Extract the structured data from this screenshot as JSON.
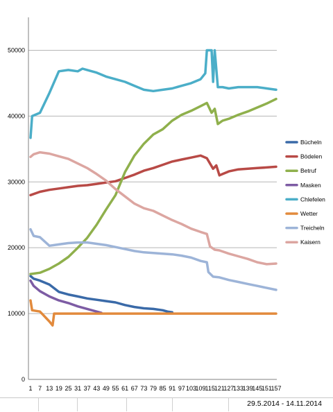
{
  "chart_data": {
    "type": "line",
    "x_ticks": [
      1,
      7,
      13,
      19,
      25,
      31,
      37,
      43,
      49,
      55,
      61,
      67,
      73,
      79,
      85,
      91,
      97,
      103,
      109,
      115,
      121,
      127,
      133,
      139,
      145,
      151,
      157
    ],
    "x_tick_labels": [
      "1",
      "7",
      "13",
      "19",
      "25",
      "31",
      "37",
      "43",
      "49",
      "55",
      "61",
      "67",
      "73",
      "79",
      "85",
      "91",
      "97",
      "103",
      "109",
      "115",
      "121",
      "127",
      "133",
      "139",
      "145",
      "151",
      "157"
    ],
    "y_ticks": [
      0,
      10000,
      20000,
      30000,
      40000,
      50000
    ],
    "y_tick_labels": [
      "0",
      "10000",
      "20000",
      "30000",
      "40000",
      "50000"
    ],
    "ylim": [
      0,
      55000
    ],
    "xlim": [
      1,
      157
    ],
    "grid": "horizontal",
    "legend_position": "right",
    "series": [
      {
        "name": "Bücheln",
        "color": "#3a6aa8",
        "points": [
          [
            1,
            15700
          ],
          [
            3,
            15300
          ],
          [
            7,
            15000
          ],
          [
            13,
            14400
          ],
          [
            19,
            13300
          ],
          [
            25,
            12900
          ],
          [
            31,
            12600
          ],
          [
            37,
            12300
          ],
          [
            43,
            12100
          ],
          [
            49,
            11900
          ],
          [
            55,
            11700
          ],
          [
            61,
            11300
          ],
          [
            67,
            11000
          ],
          [
            73,
            10800
          ],
          [
            79,
            10700
          ],
          [
            85,
            10500
          ],
          [
            88,
            10300
          ],
          [
            91,
            10200
          ]
        ]
      },
      {
        "name": "Bödelen",
        "color": "#b84a46",
        "points": [
          [
            1,
            28000
          ],
          [
            7,
            28500
          ],
          [
            13,
            28800
          ],
          [
            19,
            29000
          ],
          [
            25,
            29200
          ],
          [
            31,
            29400
          ],
          [
            37,
            29500
          ],
          [
            43,
            29700
          ],
          [
            49,
            29900
          ],
          [
            55,
            30100
          ],
          [
            61,
            30600
          ],
          [
            67,
            31100
          ],
          [
            73,
            31700
          ],
          [
            79,
            32100
          ],
          [
            85,
            32600
          ],
          [
            91,
            33100
          ],
          [
            97,
            33400
          ],
          [
            103,
            33700
          ],
          [
            109,
            34000
          ],
          [
            113,
            33600
          ],
          [
            117,
            32000
          ],
          [
            119,
            32500
          ],
          [
            121,
            31000
          ],
          [
            123,
            31200
          ],
          [
            127,
            31600
          ],
          [
            133,
            31900
          ],
          [
            139,
            32000
          ],
          [
            145,
            32100
          ],
          [
            151,
            32200
          ],
          [
            157,
            32300
          ]
        ]
      },
      {
        "name": "Betruf",
        "color": "#8fb04c",
        "points": [
          [
            1,
            16000
          ],
          [
            7,
            16200
          ],
          [
            13,
            16800
          ],
          [
            19,
            17600
          ],
          [
            25,
            18600
          ],
          [
            31,
            20000
          ],
          [
            37,
            21500
          ],
          [
            43,
            23500
          ],
          [
            49,
            25800
          ],
          [
            55,
            28000
          ],
          [
            61,
            31500
          ],
          [
            67,
            34000
          ],
          [
            73,
            35800
          ],
          [
            79,
            37200
          ],
          [
            85,
            38000
          ],
          [
            91,
            39300
          ],
          [
            97,
            40200
          ],
          [
            103,
            40800
          ],
          [
            109,
            41500
          ],
          [
            113,
            42000
          ],
          [
            116,
            40500
          ],
          [
            118,
            41100
          ],
          [
            120,
            38800
          ],
          [
            123,
            39300
          ],
          [
            127,
            39600
          ],
          [
            133,
            40200
          ],
          [
            139,
            40700
          ],
          [
            145,
            41300
          ],
          [
            151,
            41900
          ],
          [
            157,
            42600
          ]
        ]
      },
      {
        "name": "Masken",
        "color": "#7d5ca4",
        "points": [
          [
            1,
            15000
          ],
          [
            3,
            14200
          ],
          [
            7,
            13400
          ],
          [
            13,
            12600
          ],
          [
            19,
            12000
          ],
          [
            25,
            11600
          ],
          [
            31,
            11100
          ],
          [
            37,
            10700
          ],
          [
            43,
            10300
          ],
          [
            46,
            10100
          ]
        ]
      },
      {
        "name": "Chlefelen",
        "color": "#4baec8",
        "points": [
          [
            1,
            36700
          ],
          [
            2,
            40000
          ],
          [
            7,
            40500
          ],
          [
            13,
            43500
          ],
          [
            19,
            46800
          ],
          [
            25,
            47000
          ],
          [
            31,
            46800
          ],
          [
            34,
            47200
          ],
          [
            37,
            47000
          ],
          [
            43,
            46600
          ],
          [
            49,
            46000
          ],
          [
            55,
            45600
          ],
          [
            61,
            45200
          ],
          [
            67,
            44600
          ],
          [
            73,
            44000
          ],
          [
            79,
            43800
          ],
          [
            85,
            44000
          ],
          [
            91,
            44200
          ],
          [
            97,
            44600
          ],
          [
            103,
            45000
          ],
          [
            109,
            45600
          ],
          [
            112,
            46500
          ],
          [
            113,
            50000
          ],
          [
            116,
            50000
          ],
          [
            117,
            45200
          ],
          [
            118,
            50000
          ],
          [
            120,
            44400
          ],
          [
            123,
            44400
          ],
          [
            127,
            44200
          ],
          [
            133,
            44400
          ],
          [
            139,
            44400
          ],
          [
            145,
            44400
          ],
          [
            151,
            44200
          ],
          [
            157,
            44000
          ]
        ]
      },
      {
        "name": "Wetter",
        "color": "#e28a3c",
        "points": [
          [
            1,
            12000
          ],
          [
            2,
            10500
          ],
          [
            7,
            10300
          ],
          [
            13,
            8800
          ],
          [
            15,
            8200
          ],
          [
            16,
            10000
          ],
          [
            19,
            10000
          ],
          [
            157,
            10000
          ]
        ]
      },
      {
        "name": "Treicheln",
        "color": "#9db4d8",
        "points": [
          [
            1,
            22800
          ],
          [
            3,
            21800
          ],
          [
            7,
            21600
          ],
          [
            13,
            20300
          ],
          [
            19,
            20500
          ],
          [
            25,
            20700
          ],
          [
            31,
            20800
          ],
          [
            37,
            20800
          ],
          [
            43,
            20600
          ],
          [
            49,
            20400
          ],
          [
            55,
            20100
          ],
          [
            61,
            19800
          ],
          [
            67,
            19500
          ],
          [
            73,
            19300
          ],
          [
            79,
            19200
          ],
          [
            85,
            19100
          ],
          [
            91,
            19000
          ],
          [
            97,
            18800
          ],
          [
            103,
            18500
          ],
          [
            109,
            18000
          ],
          [
            113,
            17800
          ],
          [
            114,
            16300
          ],
          [
            117,
            15600
          ],
          [
            121,
            15500
          ],
          [
            127,
            15100
          ],
          [
            133,
            14800
          ],
          [
            139,
            14500
          ],
          [
            145,
            14200
          ],
          [
            151,
            13900
          ],
          [
            157,
            13600
          ]
        ]
      },
      {
        "name": "Kaisern",
        "color": "#dca6a1",
        "points": [
          [
            1,
            33800
          ],
          [
            3,
            34200
          ],
          [
            7,
            34500
          ],
          [
            13,
            34300
          ],
          [
            19,
            33900
          ],
          [
            25,
            33500
          ],
          [
            31,
            32800
          ],
          [
            37,
            32100
          ],
          [
            43,
            31200
          ],
          [
            49,
            30200
          ],
          [
            55,
            28900
          ],
          [
            61,
            27800
          ],
          [
            67,
            26700
          ],
          [
            73,
            26000
          ],
          [
            79,
            25600
          ],
          [
            85,
            24900
          ],
          [
            91,
            24200
          ],
          [
            97,
            23600
          ],
          [
            103,
            22900
          ],
          [
            109,
            22400
          ],
          [
            113,
            22100
          ],
          [
            115,
            20200
          ],
          [
            118,
            19700
          ],
          [
            121,
            19600
          ],
          [
            127,
            19100
          ],
          [
            133,
            18700
          ],
          [
            139,
            18300
          ],
          [
            145,
            17800
          ],
          [
            151,
            17500
          ],
          [
            157,
            17600
          ]
        ]
      }
    ]
  },
  "sheet": {
    "date_range": "29.5.2014 - 14.11.2014"
  }
}
